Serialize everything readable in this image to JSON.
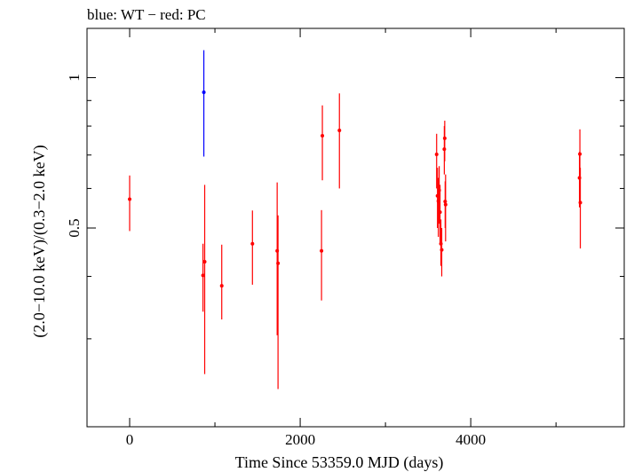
{
  "chart_data": {
    "type": "scatter",
    "title": "blue: WT − red: PC",
    "xlabel": "Time Since 53359.0 MJD (days)",
    "ylabel": "(2.0−10.0 keV)/(0.3−2.0 keV)",
    "xlim": [
      -500,
      5800
    ],
    "ylim": [
      0.2,
      1.255
    ],
    "y_scale": "log",
    "x_ticks": [
      0,
      2000,
      4000
    ],
    "x_tick_labels": [
      "0",
      "2000",
      "4000"
    ],
    "y_ticks": [
      0.5,
      1.0
    ],
    "y_tick_labels": [
      "0.5",
      "1"
    ],
    "y_minor_ticks": [
      0.3,
      0.4,
      0.6,
      0.7,
      0.8,
      0.9
    ],
    "grid": false,
    "colors": {
      "WT": "#0000ff",
      "PC": "#ff0000"
    },
    "series": [
      {
        "name": "WT",
        "color": "#0000ff",
        "points": [
          {
            "x": 870,
            "y": 0.935,
            "ylo": 0.695,
            "yhi": 1.135
          }
        ]
      },
      {
        "name": "PC",
        "color": "#ff0000",
        "points": [
          {
            "x": 0,
            "y": 0.571,
            "ylo": 0.493,
            "yhi": 0.637
          },
          {
            "x": 860,
            "y": 0.402,
            "ylo": 0.34,
            "yhi": 0.465
          },
          {
            "x": 880,
            "y": 0.428,
            "ylo": 0.255,
            "yhi": 0.61
          },
          {
            "x": 1080,
            "y": 0.383,
            "ylo": 0.328,
            "yhi": 0.463
          },
          {
            "x": 1440,
            "y": 0.465,
            "ylo": 0.385,
            "yhi": 0.542
          },
          {
            "x": 1730,
            "y": 0.45,
            "ylo": 0.305,
            "yhi": 0.617
          },
          {
            "x": 1740,
            "y": 0.425,
            "ylo": 0.238,
            "yhi": 0.53
          },
          {
            "x": 2250,
            "y": 0.45,
            "ylo": 0.358,
            "yhi": 0.543
          },
          {
            "x": 2260,
            "y": 0.765,
            "ylo": 0.623,
            "yhi": 0.88
          },
          {
            "x": 2460,
            "y": 0.784,
            "ylo": 0.6,
            "yhi": 0.93
          },
          {
            "x": 3600,
            "y": 0.702,
            "ylo": 0.6,
            "yhi": 0.772
          },
          {
            "x": 3610,
            "y": 0.58,
            "ylo": 0.5,
            "yhi": 0.66
          },
          {
            "x": 3620,
            "y": 0.566,
            "ylo": 0.48,
            "yhi": 0.63
          },
          {
            "x": 3630,
            "y": 0.595,
            "ylo": 0.51,
            "yhi": 0.665
          },
          {
            "x": 3640,
            "y": 0.538,
            "ylo": 0.465,
            "yhi": 0.61
          },
          {
            "x": 3650,
            "y": 0.465,
            "ylo": 0.42,
            "yhi": 0.52
          },
          {
            "x": 3660,
            "y": 0.452,
            "ylo": 0.4,
            "yhi": 0.5
          },
          {
            "x": 3690,
            "y": 0.719,
            "ylo": 0.64,
            "yhi": 0.8
          },
          {
            "x": 3695,
            "y": 0.756,
            "ylo": 0.68,
            "yhi": 0.82
          },
          {
            "x": 3700,
            "y": 0.565,
            "ylo": 0.5,
            "yhi": 0.62
          },
          {
            "x": 3705,
            "y": 0.557,
            "ylo": 0.47,
            "yhi": 0.64
          },
          {
            "x": 5280,
            "y": 0.703,
            "ylo": 0.63,
            "yhi": 0.788
          },
          {
            "x": 5275,
            "y": 0.63,
            "ylo": 0.55,
            "yhi": 0.71
          },
          {
            "x": 5285,
            "y": 0.562,
            "ylo": 0.455,
            "yhi": 0.66
          }
        ]
      }
    ]
  }
}
